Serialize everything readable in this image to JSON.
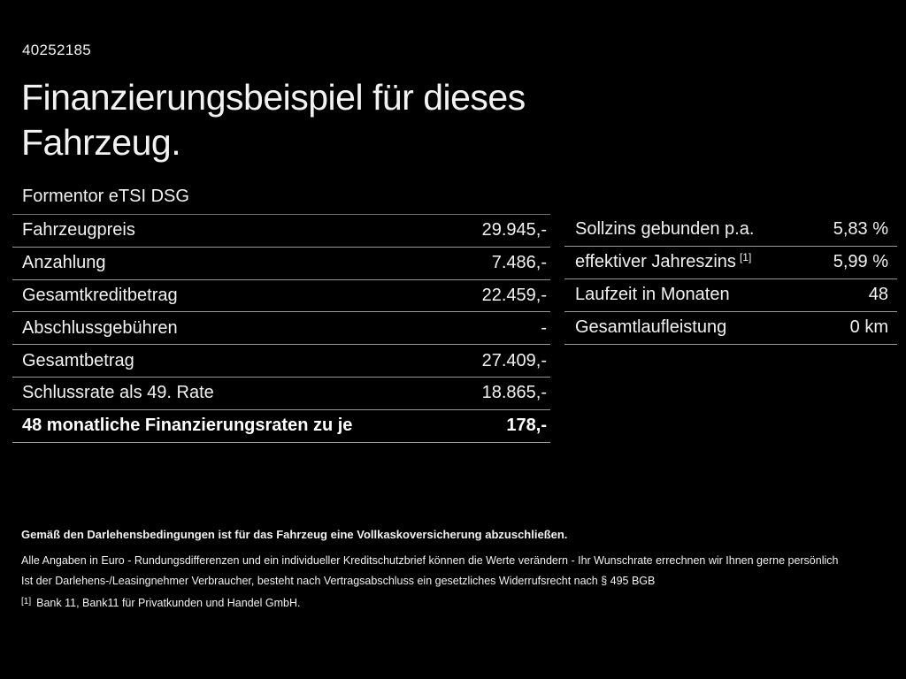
{
  "header": {
    "vehicle_id": "40252185",
    "title_line1": "Finanzierungsbeispiel für dieses",
    "title_line2": "Fahrzeug.",
    "model": "Formentor eTSI DSG"
  },
  "finance_table": {
    "rows": [
      {
        "label": "Fahrzeugpreis",
        "value": "29.945,-"
      },
      {
        "label": "Anzahlung",
        "value": "7.486,-"
      },
      {
        "label": "Gesamtkreditbetrag",
        "value": "22.459,-"
      },
      {
        "label": "Abschlussgebühren",
        "value": "-"
      },
      {
        "label": "Gesamtbetrag",
        "value": "27.409,-"
      },
      {
        "label": "Schlussrate als 49. Rate",
        "value": "18.865,-"
      },
      {
        "label": "48 monatliche Finanzierungsraten zu je",
        "value": "178,-"
      }
    ]
  },
  "interest_table": {
    "rows": [
      {
        "label": "Sollzins gebunden p.a.",
        "value": "5,83 %"
      },
      {
        "label": "effektiver Jahreszins",
        "sup": "[1]",
        "value": "5,99 %"
      },
      {
        "label": "Laufzeit in Monaten",
        "value": "48"
      },
      {
        "label": "Gesamtlaufleistung",
        "value": "0 km"
      }
    ]
  },
  "footer": {
    "line_bold": "Gemäß den Darlehensbedingungen ist für das Fahrzeug eine Vollkaskoversicherung abzuschließen.",
    "line_2": "Alle Angaben in Euro - Rundungsdifferenzen und ein individueller Kreditschutzbrief können die Werte verändern - Ihr Wunschrate errechnen wir Ihnen gerne persönlich",
    "line_3": "Ist der Darlehens-/Leasingnehmer Verbraucher, besteht nach Vertragsabschluss ein gesetzliches Widerrufsrecht nach § 495 BGB",
    "footnote_marker": "[1]",
    "footnote_text": "Bank 11, Bank11 für Privatkunden und Handel GmbH."
  },
  "colors": {
    "background": "#000000",
    "text": "#f2f2f2",
    "divider": "#9a9a9a"
  }
}
